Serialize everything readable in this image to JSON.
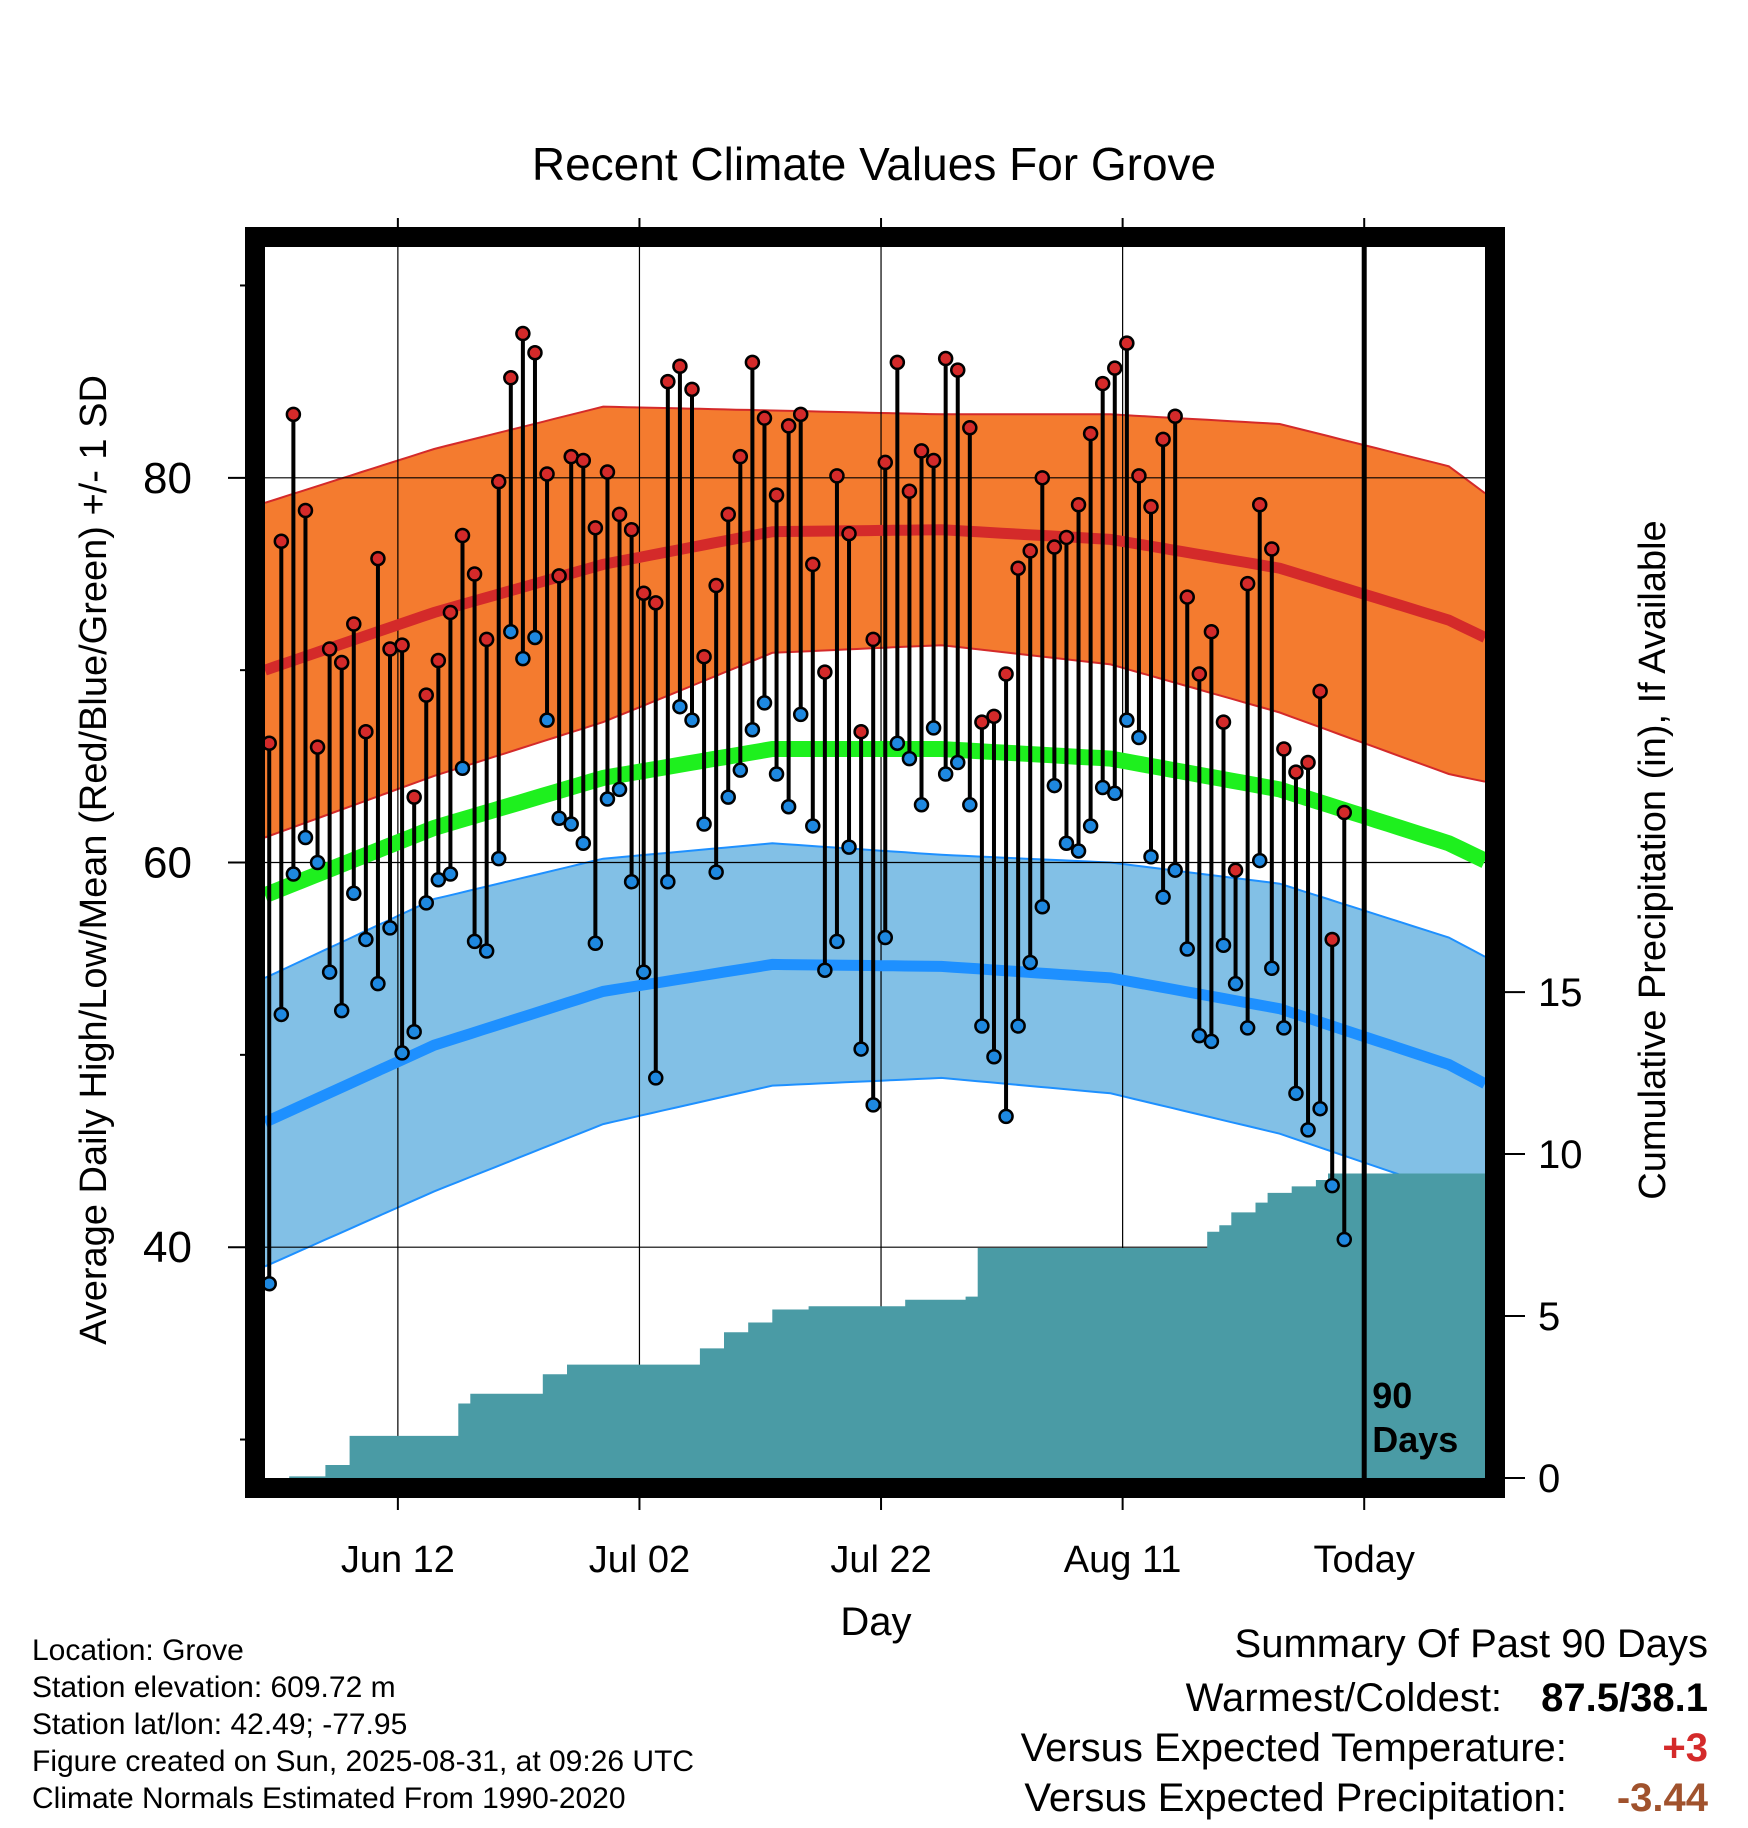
{
  "chart_data": {
    "type": "line",
    "title": "Recent Climate Values For Grove",
    "xlabel": "Day",
    "ylabel": "Average Daily High/Low/Mean (Red/Blue/Green) +/- 1 SD",
    "ylabel_right": "Cumulative Precipitation (in), If Available",
    "x_range": [
      "2025-06-01",
      "2025-09-10"
    ],
    "x_ticks": [
      {
        "date": "2025-06-12",
        "label": "Jun 12"
      },
      {
        "date": "2025-07-02",
        "label": "Jul 02"
      },
      {
        "date": "2025-07-22",
        "label": "Jul 22"
      },
      {
        "date": "2025-08-11",
        "label": "Aug 11"
      },
      {
        "date": "2025-08-31",
        "label": "Today"
      }
    ],
    "ylim": [
      28,
      92
    ],
    "y_ticks": [
      40,
      60,
      80
    ],
    "y2lim": [
      0,
      38
    ],
    "y2_ticks": [
      0,
      5,
      10,
      15
    ],
    "today_marker": {
      "date": "2025-08-31",
      "label_line1": "90",
      "label_line2": "Days"
    },
    "normals": {
      "dates": [
        "2025-06-01",
        "2025-06-15",
        "2025-06-29",
        "2025-07-13",
        "2025-07-27",
        "2025-08-10",
        "2025-08-24",
        "2025-09-07",
        "2025-09-10"
      ],
      "high_mean": [
        70.0,
        73.0,
        75.5,
        77.2,
        77.3,
        76.8,
        75.3,
        72.6,
        71.7
      ],
      "high_sd": [
        8.7,
        8.5,
        8.2,
        6.3,
        6.0,
        6.5,
        7.5,
        8.0,
        7.5
      ],
      "low_mean": [
        46.5,
        50.5,
        53.3,
        54.7,
        54.6,
        54.0,
        52.4,
        49.5,
        48.5
      ],
      "low_sd": [
        7.5,
        7.6,
        6.9,
        6.3,
        5.8,
        6.0,
        6.5,
        6.6,
        6.6
      ],
      "mean": [
        58.3,
        61.8,
        64.4,
        65.9,
        65.9,
        65.4,
        63.8,
        61.0,
        60.1
      ]
    },
    "daily": {
      "start_date": "2025-06-01",
      "high": [
        66.2,
        76.7,
        83.3,
        78.3,
        66.0,
        71.1,
        70.4,
        72.4,
        66.8,
        75.8,
        71.1,
        71.3,
        63.4,
        68.7,
        70.5,
        73.0,
        77.0,
        75.0,
        71.6,
        79.8,
        85.2,
        87.5,
        86.5,
        80.2,
        74.9,
        81.1,
        80.9,
        77.4,
        80.3,
        78.1,
        77.3,
        74.0,
        73.5,
        85.0,
        85.8,
        84.6,
        70.7,
        74.4,
        78.1,
        81.1,
        86.0,
        83.1,
        79.1,
        82.7,
        83.3,
        75.5,
        69.9,
        80.1,
        77.1,
        66.8,
        71.6,
        80.8,
        86.0,
        79.3,
        81.4,
        80.9,
        86.2,
        85.6,
        82.6,
        67.3,
        67.6,
        69.8,
        75.3,
        76.2,
        80.0,
        76.4,
        76.9,
        78.6,
        82.3,
        84.9,
        85.7,
        87.0,
        80.1,
        78.5,
        82.0,
        83.2,
        73.8,
        69.8,
        72.0,
        67.3,
        59.6,
        74.5,
        78.6,
        76.3,
        65.9,
        64.7,
        65.2,
        68.9,
        56.0,
        62.6
      ],
      "low": [
        38.1,
        52.1,
        59.4,
        61.3,
        60.0,
        54.3,
        52.3,
        58.4,
        56.0,
        53.7,
        56.6,
        50.1,
        51.2,
        57.9,
        59.1,
        59.4,
        64.9,
        55.9,
        55.4,
        60.2,
        72.0,
        70.6,
        71.7,
        67.4,
        62.3,
        62.0,
        61.0,
        55.8,
        63.3,
        63.8,
        59.0,
        54.3,
        48.8,
        59.0,
        68.1,
        67.4,
        62.0,
        59.5,
        63.4,
        64.8,
        66.9,
        68.3,
        64.6,
        62.9,
        67.7,
        61.9,
        54.4,
        55.9,
        60.8,
        50.3,
        47.4,
        56.1,
        66.2,
        65.4,
        63.0,
        67.0,
        64.6,
        65.2,
        63.0,
        51.5,
        49.9,
        46.8,
        51.5,
        54.8,
        57.7,
        64.0,
        61.0,
        60.6,
        61.9,
        63.9,
        63.6,
        67.4,
        66.5,
        60.3,
        58.2,
        59.6,
        55.5,
        51.0,
        50.7,
        55.7,
        53.7,
        51.4,
        60.1,
        54.5,
        51.4,
        48.0,
        46.1,
        47.2,
        43.2,
        40.4
      ]
    },
    "precip_cumulative": {
      "dates": [
        "2025-06-01",
        "2025-06-03",
        "2025-06-06",
        "2025-06-08",
        "2025-06-09",
        "2025-06-10",
        "2025-06-16",
        "2025-06-17",
        "2025-06-18",
        "2025-06-23",
        "2025-06-24",
        "2025-06-26",
        "2025-07-06",
        "2025-07-07",
        "2025-07-08",
        "2025-07-09",
        "2025-07-10",
        "2025-07-11",
        "2025-07-12",
        "2025-07-13",
        "2025-07-14",
        "2025-07-16",
        "2025-07-19",
        "2025-07-24",
        "2025-07-26",
        "2025-07-29",
        "2025-07-30",
        "2025-08-17",
        "2025-08-18",
        "2025-08-19",
        "2025-08-20",
        "2025-08-22",
        "2025-08-23",
        "2025-08-24",
        "2025-08-25",
        "2025-08-27",
        "2025-08-28",
        "2025-09-10"
      ],
      "values": [
        0,
        0.05,
        0.4,
        1.3,
        1.3,
        1.3,
        1.3,
        2.3,
        2.6,
        2.6,
        3.2,
        3.5,
        3.5,
        4.0,
        4.0,
        4.5,
        4.5,
        4.8,
        4.8,
        5.2,
        5.2,
        5.3,
        5.3,
        5.5,
        5.5,
        5.6,
        7.1,
        7.1,
        7.6,
        7.8,
        8.2,
        8.5,
        8.8,
        8.8,
        9.0,
        9.2,
        9.4,
        9.4
      ]
    },
    "grid": true
  },
  "meta": {
    "location": "Location: Grove",
    "elevation": "Station elevation: 609.72 m",
    "latlon": "Station lat/lon: 42.49; -77.95",
    "created": "Figure created on Sun, 2025-08-31, at 09:26 UTC",
    "normals": "Climate Normals Estimated From 1990-2020"
  },
  "summary": {
    "title": "Summary Of Past 90 Days",
    "warmest_label": "Warmest/Coldest:",
    "warmest_value": "87.5/38.1",
    "temp_label": "Versus Expected Temperature:",
    "temp_value": "+3",
    "precip_label": "Versus Expected Precipitation:",
    "precip_value": "-3.44"
  },
  "colors": {
    "high_band": "#f47b2f",
    "high_line": "#d42a2a",
    "low_band": "#82c0e6",
    "low_line": "#1e90ff",
    "mean_line": "#1ef01e",
    "precip_fill": "#4a9ba5",
    "high_dot": "#d42a2a",
    "low_dot": "#1e88e0",
    "temp_value_color": "#d42a2a",
    "precip_value_color": "#a0522d"
  }
}
